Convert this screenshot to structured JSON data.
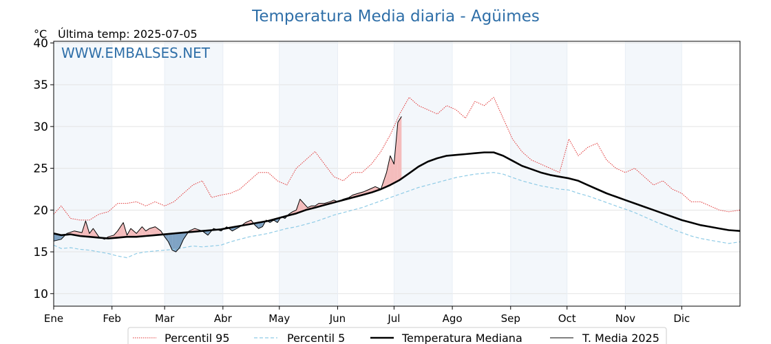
{
  "chart_data": {
    "type": "line",
    "title": "Temperatura Media diaria - Agüimes",
    "unit_label": "°C",
    "last_temp_label": "Última temp: 2025-07-05",
    "watermark": "WWW.EMBALSES.NET",
    "x_ticks": [
      {
        "label": "Ene",
        "day": 1
      },
      {
        "label": "Feb",
        "day": 32
      },
      {
        "label": "Mar",
        "day": 60
      },
      {
        "label": "Abr",
        "day": 91
      },
      {
        "label": "May",
        "day": 121
      },
      {
        "label": "Jun",
        "day": 152
      },
      {
        "label": "Jul",
        "day": 182
      },
      {
        "label": "Ago",
        "day": 213
      },
      {
        "label": "Sep",
        "day": 244
      },
      {
        "label": "Oct",
        "day": 274
      },
      {
        "label": "Nov",
        "day": 305
      },
      {
        "label": "Dic",
        "day": 335
      }
    ],
    "x_range": [
      1,
      366
    ],
    "y_ticks": [
      10,
      15,
      20,
      25,
      30,
      35,
      40
    ],
    "ylim": [
      8.5,
      40.2
    ],
    "grid": true,
    "legend_position": "bottom",
    "series": [
      {
        "name": "Percentil 95",
        "color": "#e03030",
        "style": "dotted",
        "points": [
          [
            1,
            19.5
          ],
          [
            5,
            20.5
          ],
          [
            10,
            19.0
          ],
          [
            15,
            18.8
          ],
          [
            20,
            18.8
          ],
          [
            25,
            19.5
          ],
          [
            30,
            19.8
          ],
          [
            35,
            20.8
          ],
          [
            40,
            20.8
          ],
          [
            45,
            21.0
          ],
          [
            50,
            20.5
          ],
          [
            55,
            21.0
          ],
          [
            60,
            20.5
          ],
          [
            65,
            21.0
          ],
          [
            70,
            22.0
          ],
          [
            75,
            23.0
          ],
          [
            80,
            23.5
          ],
          [
            85,
            21.5
          ],
          [
            90,
            21.8
          ],
          [
            95,
            22.0
          ],
          [
            100,
            22.5
          ],
          [
            105,
            23.5
          ],
          [
            110,
            24.5
          ],
          [
            115,
            24.5
          ],
          [
            120,
            23.5
          ],
          [
            125,
            23.0
          ],
          [
            130,
            25.0
          ],
          [
            135,
            26.0
          ],
          [
            140,
            27.0
          ],
          [
            145,
            25.5
          ],
          [
            150,
            24.0
          ],
          [
            155,
            23.5
          ],
          [
            160,
            24.5
          ],
          [
            165,
            24.5
          ],
          [
            170,
            25.5
          ],
          [
            175,
            27.0
          ],
          [
            180,
            29.0
          ],
          [
            185,
            31.5
          ],
          [
            190,
            33.5
          ],
          [
            195,
            32.5
          ],
          [
            200,
            32.0
          ],
          [
            205,
            31.5
          ],
          [
            210,
            32.5
          ],
          [
            215,
            32.0
          ],
          [
            220,
            31.0
          ],
          [
            225,
            33.0
          ],
          [
            230,
            32.5
          ],
          [
            235,
            33.5
          ],
          [
            240,
            31.0
          ],
          [
            245,
            28.5
          ],
          [
            250,
            27.0
          ],
          [
            255,
            26.0
          ],
          [
            260,
            25.5
          ],
          [
            265,
            25.0
          ],
          [
            270,
            24.5
          ],
          [
            275,
            28.5
          ],
          [
            280,
            26.5
          ],
          [
            285,
            27.5
          ],
          [
            290,
            28.0
          ],
          [
            295,
            26.0
          ],
          [
            300,
            25.0
          ],
          [
            305,
            24.5
          ],
          [
            310,
            25.0
          ],
          [
            315,
            24.0
          ],
          [
            320,
            23.0
          ],
          [
            325,
            23.5
          ],
          [
            330,
            22.5
          ],
          [
            335,
            22.0
          ],
          [
            340,
            21.0
          ],
          [
            345,
            21.0
          ],
          [
            350,
            20.5
          ],
          [
            355,
            20.0
          ],
          [
            360,
            19.8
          ],
          [
            366,
            20.0
          ]
        ]
      },
      {
        "name": "Percentil 5",
        "color": "#8ecbe6",
        "style": "dashed",
        "points": [
          [
            1,
            15.8
          ],
          [
            5,
            15.4
          ],
          [
            10,
            15.5
          ],
          [
            15,
            15.3
          ],
          [
            20,
            15.2
          ],
          [
            25,
            15.0
          ],
          [
            30,
            14.8
          ],
          [
            35,
            14.5
          ],
          [
            40,
            14.3
          ],
          [
            45,
            14.8
          ],
          [
            50,
            15.0
          ],
          [
            55,
            15.1
          ],
          [
            60,
            15.2
          ],
          [
            65,
            15.3
          ],
          [
            70,
            15.5
          ],
          [
            75,
            15.7
          ],
          [
            80,
            15.6
          ],
          [
            85,
            15.7
          ],
          [
            90,
            15.8
          ],
          [
            95,
            16.2
          ],
          [
            100,
            16.5
          ],
          [
            105,
            16.8
          ],
          [
            110,
            17.0
          ],
          [
            115,
            17.2
          ],
          [
            120,
            17.5
          ],
          [
            125,
            17.8
          ],
          [
            130,
            18.0
          ],
          [
            135,
            18.3
          ],
          [
            140,
            18.6
          ],
          [
            145,
            19.0
          ],
          [
            150,
            19.4
          ],
          [
            155,
            19.7
          ],
          [
            160,
            20.0
          ],
          [
            165,
            20.3
          ],
          [
            170,
            20.7
          ],
          [
            175,
            21.1
          ],
          [
            180,
            21.5
          ],
          [
            185,
            21.9
          ],
          [
            190,
            22.3
          ],
          [
            195,
            22.7
          ],
          [
            200,
            23.0
          ],
          [
            205,
            23.3
          ],
          [
            210,
            23.6
          ],
          [
            215,
            23.9
          ],
          [
            220,
            24.1
          ],
          [
            225,
            24.3
          ],
          [
            230,
            24.4
          ],
          [
            235,
            24.5
          ],
          [
            240,
            24.3
          ],
          [
            245,
            23.9
          ],
          [
            250,
            23.5
          ],
          [
            255,
            23.2
          ],
          [
            260,
            22.9
          ],
          [
            265,
            22.7
          ],
          [
            270,
            22.5
          ],
          [
            275,
            22.4
          ],
          [
            280,
            22.0
          ],
          [
            285,
            21.7
          ],
          [
            290,
            21.3
          ],
          [
            295,
            20.9
          ],
          [
            300,
            20.5
          ],
          [
            305,
            20.1
          ],
          [
            310,
            19.7
          ],
          [
            315,
            19.2
          ],
          [
            320,
            18.7
          ],
          [
            325,
            18.2
          ],
          [
            330,
            17.7
          ],
          [
            335,
            17.3
          ],
          [
            340,
            16.9
          ],
          [
            345,
            16.6
          ],
          [
            350,
            16.4
          ],
          [
            355,
            16.2
          ],
          [
            360,
            16.0
          ],
          [
            366,
            16.2
          ]
        ]
      },
      {
        "name": "Temperatura Mediana",
        "color": "#000000",
        "style": "bold",
        "points": [
          [
            1,
            17.2
          ],
          [
            5,
            17.0
          ],
          [
            10,
            17.1
          ],
          [
            15,
            16.9
          ],
          [
            20,
            16.8
          ],
          [
            25,
            16.7
          ],
          [
            30,
            16.6
          ],
          [
            35,
            16.7
          ],
          [
            40,
            16.8
          ],
          [
            45,
            16.8
          ],
          [
            50,
            16.9
          ],
          [
            55,
            17.0
          ],
          [
            60,
            17.1
          ],
          [
            65,
            17.2
          ],
          [
            70,
            17.3
          ],
          [
            75,
            17.4
          ],
          [
            80,
            17.5
          ],
          [
            85,
            17.6
          ],
          [
            90,
            17.7
          ],
          [
            95,
            17.9
          ],
          [
            100,
            18.1
          ],
          [
            105,
            18.3
          ],
          [
            110,
            18.5
          ],
          [
            115,
            18.7
          ],
          [
            120,
            19.0
          ],
          [
            125,
            19.3
          ],
          [
            130,
            19.6
          ],
          [
            135,
            20.0
          ],
          [
            140,
            20.3
          ],
          [
            145,
            20.6
          ],
          [
            150,
            20.9
          ],
          [
            155,
            21.2
          ],
          [
            160,
            21.5
          ],
          [
            165,
            21.8
          ],
          [
            170,
            22.1
          ],
          [
            175,
            22.5
          ],
          [
            180,
            23.0
          ],
          [
            185,
            23.6
          ],
          [
            190,
            24.4
          ],
          [
            195,
            25.2
          ],
          [
            200,
            25.8
          ],
          [
            205,
            26.2
          ],
          [
            210,
            26.5
          ],
          [
            215,
            26.6
          ],
          [
            220,
            26.7
          ],
          [
            225,
            26.8
          ],
          [
            230,
            26.9
          ],
          [
            235,
            26.9
          ],
          [
            240,
            26.5
          ],
          [
            245,
            25.9
          ],
          [
            250,
            25.3
          ],
          [
            255,
            24.9
          ],
          [
            260,
            24.5
          ],
          [
            265,
            24.2
          ],
          [
            270,
            24.0
          ],
          [
            275,
            23.8
          ],
          [
            280,
            23.5
          ],
          [
            285,
            23.0
          ],
          [
            290,
            22.5
          ],
          [
            295,
            22.0
          ],
          [
            300,
            21.6
          ],
          [
            305,
            21.2
          ],
          [
            310,
            20.8
          ],
          [
            315,
            20.4
          ],
          [
            320,
            20.0
          ],
          [
            325,
            19.6
          ],
          [
            330,
            19.2
          ],
          [
            335,
            18.8
          ],
          [
            340,
            18.5
          ],
          [
            345,
            18.2
          ],
          [
            350,
            18.0
          ],
          [
            355,
            17.8
          ],
          [
            360,
            17.6
          ],
          [
            366,
            17.5
          ]
        ]
      },
      {
        "name": "T. Media 2025",
        "color": "#000000",
        "style": "thin",
        "points": [
          [
            1,
            16.3
          ],
          [
            5,
            16.5
          ],
          [
            8,
            17.2
          ],
          [
            12,
            17.5
          ],
          [
            16,
            17.3
          ],
          [
            18,
            18.7
          ],
          [
            20,
            17.2
          ],
          [
            22,
            17.8
          ],
          [
            25,
            16.8
          ],
          [
            28,
            16.5
          ],
          [
            30,
            16.8
          ],
          [
            33,
            17.0
          ],
          [
            35,
            17.5
          ],
          [
            38,
            18.5
          ],
          [
            40,
            17.0
          ],
          [
            42,
            17.8
          ],
          [
            45,
            17.2
          ],
          [
            48,
            18.0
          ],
          [
            50,
            17.5
          ],
          [
            52,
            17.8
          ],
          [
            55,
            18.0
          ],
          [
            58,
            17.5
          ],
          [
            60,
            16.8
          ],
          [
            62,
            16.2
          ],
          [
            64,
            15.2
          ],
          [
            66,
            15.0
          ],
          [
            68,
            15.5
          ],
          [
            70,
            16.5
          ],
          [
            73,
            17.5
          ],
          [
            76,
            17.8
          ],
          [
            80,
            17.5
          ],
          [
            83,
            17.0
          ],
          [
            86,
            17.8
          ],
          [
            90,
            17.5
          ],
          [
            93,
            18.0
          ],
          [
            96,
            17.5
          ],
          [
            100,
            18.0
          ],
          [
            103,
            18.5
          ],
          [
            106,
            18.8
          ],
          [
            108,
            18.2
          ],
          [
            110,
            17.8
          ],
          [
            112,
            18.0
          ],
          [
            114,
            18.8
          ],
          [
            116,
            18.5
          ],
          [
            118,
            18.8
          ],
          [
            120,
            18.5
          ],
          [
            122,
            19.2
          ],
          [
            124,
            19.0
          ],
          [
            126,
            19.5
          ],
          [
            128,
            19.8
          ],
          [
            130,
            20.0
          ],
          [
            132,
            21.3
          ],
          [
            134,
            20.8
          ],
          [
            136,
            20.3
          ],
          [
            138,
            20.5
          ],
          [
            140,
            20.5
          ],
          [
            142,
            20.8
          ],
          [
            145,
            20.8
          ],
          [
            148,
            21.0
          ],
          [
            150,
            21.2
          ],
          [
            152,
            21.0
          ],
          [
            155,
            21.3
          ],
          [
            158,
            21.5
          ],
          [
            160,
            21.8
          ],
          [
            163,
            22.0
          ],
          [
            166,
            22.2
          ],
          [
            169,
            22.5
          ],
          [
            172,
            22.8
          ],
          [
            175,
            22.5
          ],
          [
            178,
            24.5
          ],
          [
            180,
            26.5
          ],
          [
            182,
            25.5
          ],
          [
            184,
            30.5
          ],
          [
            186,
            31.2
          ]
        ]
      }
    ]
  },
  "legend": [
    {
      "label": "Percentil 95"
    },
    {
      "label": "Percentil 5"
    },
    {
      "label": "Temperatura Mediana"
    },
    {
      "label": "T. Media 2025"
    }
  ]
}
